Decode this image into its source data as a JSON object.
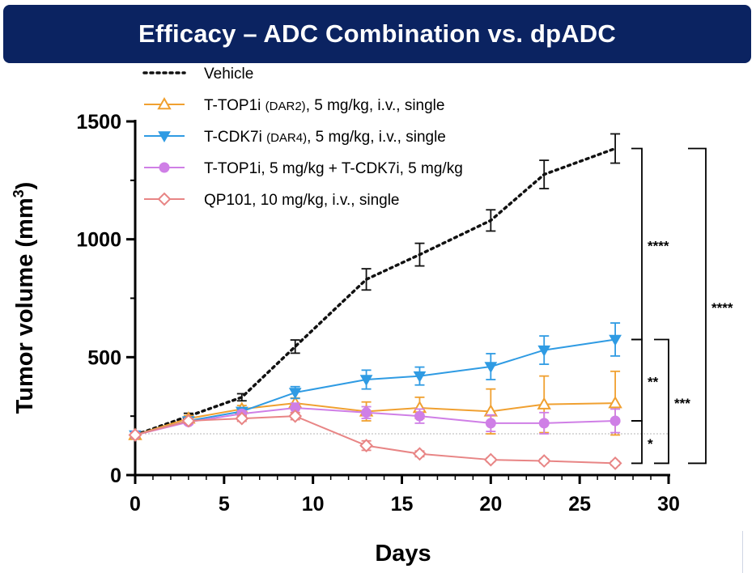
{
  "title": "Efficacy – ADC Combination vs. dpADC",
  "chart_data": {
    "type": "line",
    "xlabel": "Days",
    "ylabel": "Tumor volume (mm",
    "ylabel_sup": "3",
    "ylabel_close": ")",
    "xlim": [
      0,
      30
    ],
    "ylim": [
      0,
      1500
    ],
    "xticks": [
      0,
      5,
      10,
      15,
      20,
      25,
      30
    ],
    "yticks": [
      0,
      500,
      1000,
      1500
    ],
    "baseline_value": 175,
    "series": [
      {
        "name": "Vehicle",
        "name_main": "Vehicle",
        "name_small": "",
        "name_rest": "",
        "color": "#111111",
        "marker": "none",
        "dash": "dotted",
        "x": [
          0,
          3,
          6,
          9,
          13,
          16,
          20,
          23,
          27
        ],
        "y": [
          170,
          250,
          330,
          545,
          830,
          935,
          1080,
          1275,
          1385
        ],
        "err": [
          10,
          12,
          15,
          28,
          45,
          48,
          45,
          60,
          62
        ]
      },
      {
        "name": "T-TOP1i (DAR2), 5 mg/kg, i.v., single",
        "name_main": "T-TOP1i ",
        "name_small": "(DAR2)",
        "name_rest": ", 5 mg/kg, i.v., single",
        "color": "#f0a030",
        "marker": "triangle-up",
        "dash": "solid",
        "x": [
          0,
          3,
          6,
          9,
          13,
          16,
          20,
          23,
          27
        ],
        "y": [
          170,
          240,
          280,
          305,
          270,
          285,
          270,
          300,
          305
        ],
        "err": [
          10,
          12,
          15,
          22,
          40,
          45,
          95,
          120,
          135
        ]
      },
      {
        "name": "T-CDK7i (DAR4), 5 mg/kg, i.v., single",
        "name_main": "T-CDK7i ",
        "name_small": "(DAR4)",
        "name_rest": ", 5 mg/kg, i.v., single",
        "color": "#2f9be3",
        "marker": "triangle-down",
        "dash": "solid",
        "x": [
          0,
          3,
          6,
          9,
          13,
          16,
          20,
          23,
          27
        ],
        "y": [
          170,
          230,
          270,
          350,
          405,
          420,
          460,
          530,
          575
        ],
        "err": [
          10,
          12,
          15,
          25,
          40,
          38,
          55,
          60,
          70
        ]
      },
      {
        "name": "T-TOP1i, 5 mg/kg + T-CDK7i, 5 mg/kg",
        "name_main": "T-TOP1i, 5 mg/kg + T-CDK7i, 5 mg/kg",
        "name_small": "",
        "name_rest": "",
        "color": "#cf7fe6",
        "marker": "circle",
        "dash": "solid",
        "x": [
          0,
          3,
          6,
          9,
          13,
          16,
          20,
          23,
          27
        ],
        "y": [
          170,
          225,
          260,
          285,
          265,
          250,
          220,
          220,
          230
        ],
        "err": [
          8,
          10,
          12,
          20,
          25,
          30,
          35,
          45,
          50
        ]
      },
      {
        "name": "QP101, 10 mg/kg, i.v., single",
        "name_main": "QP101, 10 mg/kg, i.v., single",
        "name_small": "",
        "name_rest": "",
        "color": "#e88585",
        "marker": "diamond",
        "dash": "solid",
        "x": [
          0,
          3,
          6,
          9,
          13,
          16,
          20,
          23,
          27
        ],
        "y": [
          170,
          230,
          240,
          250,
          125,
          90,
          65,
          60,
          50
        ],
        "err": [
          8,
          10,
          12,
          15,
          20,
          12,
          8,
          8,
          8
        ]
      }
    ],
    "significance": [
      {
        "label": "****",
        "from_series": 0,
        "to_series": 2,
        "level": 1
      },
      {
        "label": "**",
        "from_series": 2,
        "to_series": 3,
        "level": 1
      },
      {
        "label": "*",
        "from_series": 3,
        "to_series": 4,
        "level": 1
      },
      {
        "label": "***",
        "from_series": 2,
        "to_series": 4,
        "level": 2
      },
      {
        "label": "****",
        "from_series": 0,
        "to_series": 4,
        "level": 3
      }
    ]
  }
}
